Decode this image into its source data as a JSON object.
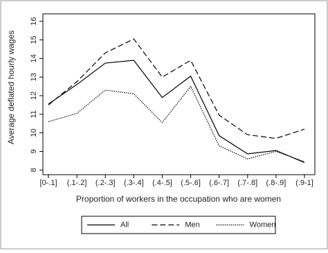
{
  "chart_data": {
    "type": "line",
    "x_label": "Proportion of workers in the occupation who are women",
    "y_label": "Average deflated hourly wages",
    "categories": [
      "[0-.1]",
      "(.1-.2]",
      "(.2-.3]",
      "(.3-.4]",
      "(.4-.5]",
      "(.5-.6]",
      "(.6-.7]",
      "(.7-.8]",
      "(.8-.9]",
      "(.9-1]"
    ],
    "series": [
      {
        "name": "All",
        "color": "#000000",
        "dash": "solid",
        "values": [
          11.55,
          12.6,
          13.75,
          13.9,
          11.9,
          13.05,
          9.85,
          8.87,
          9.05,
          8.4
        ]
      },
      {
        "name": "Men",
        "color": "#000000",
        "dash": "dashed",
        "values": [
          11.5,
          12.75,
          14.3,
          15.05,
          13.0,
          13.9,
          10.95,
          9.9,
          9.7,
          10.2
        ]
      },
      {
        "name": "Women",
        "color": "#000000",
        "dash": "dotted",
        "values": [
          10.6,
          11.05,
          12.3,
          12.1,
          10.55,
          12.5,
          9.3,
          8.6,
          9.0,
          8.45
        ]
      }
    ],
    "ylim": [
      7.75,
      16.4
    ],
    "yticks": [
      8,
      9,
      10,
      11,
      12,
      13,
      14,
      15,
      16
    ],
    "legend": "bottom"
  }
}
